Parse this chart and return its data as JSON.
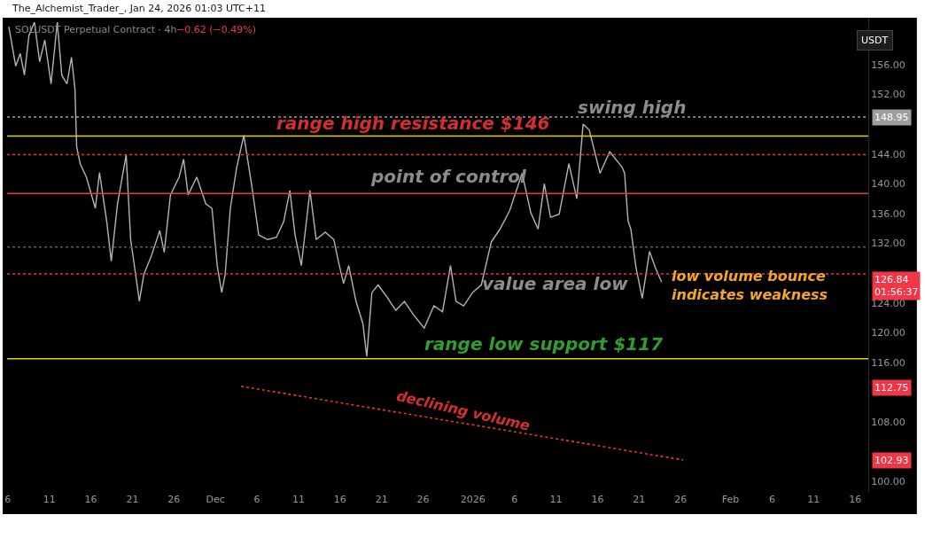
{
  "chart_data": {
    "type": "line",
    "ylabel": "USDT",
    "annotations": [
      "The_Alchemist_Trader_, Jan 24, 2026 01:03 UTC+11",
      "SOLUSDT Perpetual Contract · 4h",
      "−0.62 (−0.49%)",
      "swing high",
      "range high resistance $146",
      "point of control",
      "value area low",
      "range low support $117",
      "low volume bounce\nindicates weakness",
      "declining volume",
      "126.84\n01:56:37",
      "112.75",
      "102.93"
    ],
    "series": [
      {
        "color": "#b4b4b4",
        "line_style": "solid",
        "x": [
          "2025-11-06T03:00",
          "2025-11-06T23:00",
          "2025-11-07T12:00",
          "2025-11-08T00:00",
          "2025-11-08T13:00",
          "2025-11-09T05:00",
          "2025-11-09T20:00",
          "2025-11-10T11:00",
          "2025-11-11T05:00",
          "2025-11-11T23:00",
          "2025-11-12T12:00",
          "2025-11-13T03:00",
          "2025-11-13T16:00",
          "2025-11-14T02:00",
          "2025-11-14T07:00",
          "2025-11-14T17:00",
          "2025-11-15T11:00",
          "2025-11-16T13:00",
          "2025-11-17T01:00",
          "2025-11-17T22:00",
          "2025-11-18T11:00",
          "2025-11-19T05:00",
          "2025-11-20T06:00",
          "2025-11-20T19:00",
          "2025-11-21T13:00",
          "2025-11-21T20:00",
          "2025-11-22T09:00",
          "2025-11-23T06:00",
          "2025-11-24T07:00",
          "2025-11-24T20:00",
          "2025-11-25T14:00",
          "2025-11-26T15:00",
          "2025-11-27T04:00",
          "2025-11-27T17:00",
          "2025-11-28T18:00",
          "2025-11-29T20:00",
          "2025-11-30T14:00",
          "2025-12-01T05:00",
          "2025-12-01T18:00",
          "2025-12-02T04:00",
          "2025-12-02T19:00",
          "2025-12-03T13:00",
          "2025-12-04T10:00",
          "2025-12-05T09:00",
          "2025-12-06T05:00",
          "2025-12-07T07:00",
          "2025-12-08T08:00",
          "2025-12-09T05:00",
          "2025-12-09T23:00",
          "2025-12-10T14:00",
          "2025-12-11T08:00",
          "2025-12-12T09:00",
          "2025-12-13T03:00",
          "2025-12-14T05:00",
          "2025-12-15T06:00",
          "2025-12-15T19:00",
          "2025-12-16T10:00",
          "2025-12-17T01:00",
          "2025-12-17T22:00",
          "2025-12-18T18:00",
          "2025-12-19T05:00",
          "2025-12-19T20:00",
          "2025-12-20T14:00",
          "2025-12-21T15:00",
          "2025-12-22T17:00",
          "2025-12-23T18:00",
          "2025-12-24T20:00",
          "2025-12-26T03:00",
          "2025-12-27T07:00",
          "2025-12-28T08:00",
          "2025-12-29T07:00",
          "2025-12-29T23:00",
          "2025-12-30T21:00",
          "2025-12-31T23:00",
          "2026-01-02T00:00",
          "2026-01-03T05:00",
          "2026-01-04T06:00",
          "2026-01-05T10:00",
          "2026-01-06T22:00",
          "2026-01-07T23:00",
          "2026-01-08T20:00",
          "2026-01-09T14:00",
          "2026-01-10T08:00",
          "2026-01-11T09:00",
          "2026-01-12T13:00",
          "2026-01-13T12:00",
          "2026-01-14T06:00",
          "2026-01-15T00:00",
          "2026-01-16T07:00",
          "2026-01-17T11:00",
          "2026-01-18T23:00",
          "2026-01-19T06:00",
          "2026-01-19T16:00",
          "2026-01-20T00:00",
          "2026-01-20T15:00",
          "2026-01-21T09:00",
          "2026-01-22T06:00",
          "2026-01-22T23:00",
          "2026-01-23T17:00"
        ],
        "values": [
          161.1,
          155.8,
          157.5,
          154.6,
          159.9,
          161.7,
          156.4,
          159.3,
          153.4,
          161.7,
          154.6,
          153.4,
          157.0,
          152.8,
          145.0,
          142.7,
          140.9,
          136.7,
          141.5,
          134.9,
          129.6,
          137.3,
          143.9,
          132.5,
          126.6,
          124.2,
          127.8,
          130.2,
          133.7,
          130.8,
          138.5,
          140.9,
          143.3,
          138.5,
          140.9,
          137.3,
          136.7,
          129.0,
          125.4,
          127.8,
          136.7,
          142.1,
          146.5,
          139.7,
          133.1,
          132.5,
          132.8,
          134.9,
          139.1,
          133.1,
          129.0,
          139.1,
          132.5,
          133.5,
          132.5,
          129.6,
          126.6,
          129.0,
          124.2,
          121.2,
          116.8,
          125.4,
          126.4,
          124.8,
          123.0,
          124.2,
          122.4,
          120.6,
          123.6,
          122.8,
          129.0,
          124.2,
          123.6,
          125.4,
          126.4,
          132.2,
          133.9,
          136.4,
          141.4,
          136.1,
          133.9,
          140.0,
          135.5,
          135.9,
          142.7,
          138.0,
          148.0,
          147.2,
          141.4,
          144.3,
          142.2,
          141.4,
          135.0,
          133.9,
          128.7,
          124.6,
          130.9,
          128.7,
          126.8
        ]
      },
      {
        "color": "#e53935",
        "line_style": "dotted",
        "x": [
          "2025-12-04T02:00",
          "2026-01-26T07:00"
        ],
        "values": [
          112.8,
          102.9
        ]
      }
    ],
    "ref_lines": [
      {
        "axis": "y",
        "value": 146.4,
        "color": "#e6d000",
        "line_style": "solid"
      },
      {
        "axis": "y",
        "value": 116.5,
        "color": "#e6d000",
        "line_style": "solid"
      },
      {
        "axis": "y",
        "value": 143.9,
        "color": "#e53935",
        "line_style": "dotted"
      },
      {
        "axis": "y",
        "value": 138.7,
        "color": "#e53935",
        "line_style": "solid"
      },
      {
        "axis": "y",
        "value": 127.9,
        "color": "#e53935",
        "line_style": "dotted"
      },
      {
        "axis": "y",
        "value": 131.5,
        "color": "#5a5a5a",
        "line_style": "dotted"
      },
      {
        "axis": "y",
        "value": 148.95,
        "label": "148.95",
        "color": "#9e9e9e",
        "line_style": "dotted"
      }
    ],
    "xlim": [
      "2025-11-05T22:00",
      "2026-02-17T14:00"
    ],
    "xticks": [
      {
        "value": "2025-11-06",
        "label": "6"
      },
      {
        "value": "2025-11-11",
        "label": "11"
      },
      {
        "value": "2025-11-16",
        "label": "16"
      },
      {
        "value": "2025-11-21",
        "label": "21"
      },
      {
        "value": "2025-11-26",
        "label": "26"
      },
      {
        "value": "2025-12-01",
        "label": "Dec"
      },
      {
        "value": "2025-12-06",
        "label": "6"
      },
      {
        "value": "2025-12-11",
        "label": "11"
      },
      {
        "value": "2025-12-16",
        "label": "16"
      },
      {
        "value": "2025-12-21",
        "label": "21"
      },
      {
        "value": "2025-12-26",
        "label": "26"
      },
      {
        "value": "2026-01-01",
        "label": "2026"
      },
      {
        "value": "2026-01-06",
        "label": "6"
      },
      {
        "value": "2026-01-11",
        "label": "11"
      },
      {
        "value": "2026-01-16",
        "label": "16"
      },
      {
        "value": "2026-01-21",
        "label": "21"
      },
      {
        "value": "2026-01-26",
        "label": "26"
      },
      {
        "value": "2026-02-01",
        "label": "Feb"
      },
      {
        "value": "2026-02-06",
        "label": "6"
      },
      {
        "value": "2026-02-11",
        "label": "11"
      },
      {
        "value": "2026-02-16",
        "label": "16"
      }
    ],
    "ylim": [
      98.6,
      162.3
    ],
    "yticks": [
      {
        "value": 100,
        "label": "100.00"
      },
      {
        "value": 108,
        "label": "108.00"
      },
      {
        "value": 116,
        "label": "116.00"
      },
      {
        "value": 120,
        "label": "120.00"
      },
      {
        "value": 124,
        "label": "124.00"
      },
      {
        "value": 132,
        "label": "132.00"
      },
      {
        "value": 136,
        "label": "136.00"
      },
      {
        "value": 140,
        "label": "140.00"
      },
      {
        "value": 144,
        "label": "144.00"
      },
      {
        "value": 152,
        "label": "152.00"
      },
      {
        "value": 156,
        "label": "156.00"
      }
    ],
    "grid": false
  }
}
